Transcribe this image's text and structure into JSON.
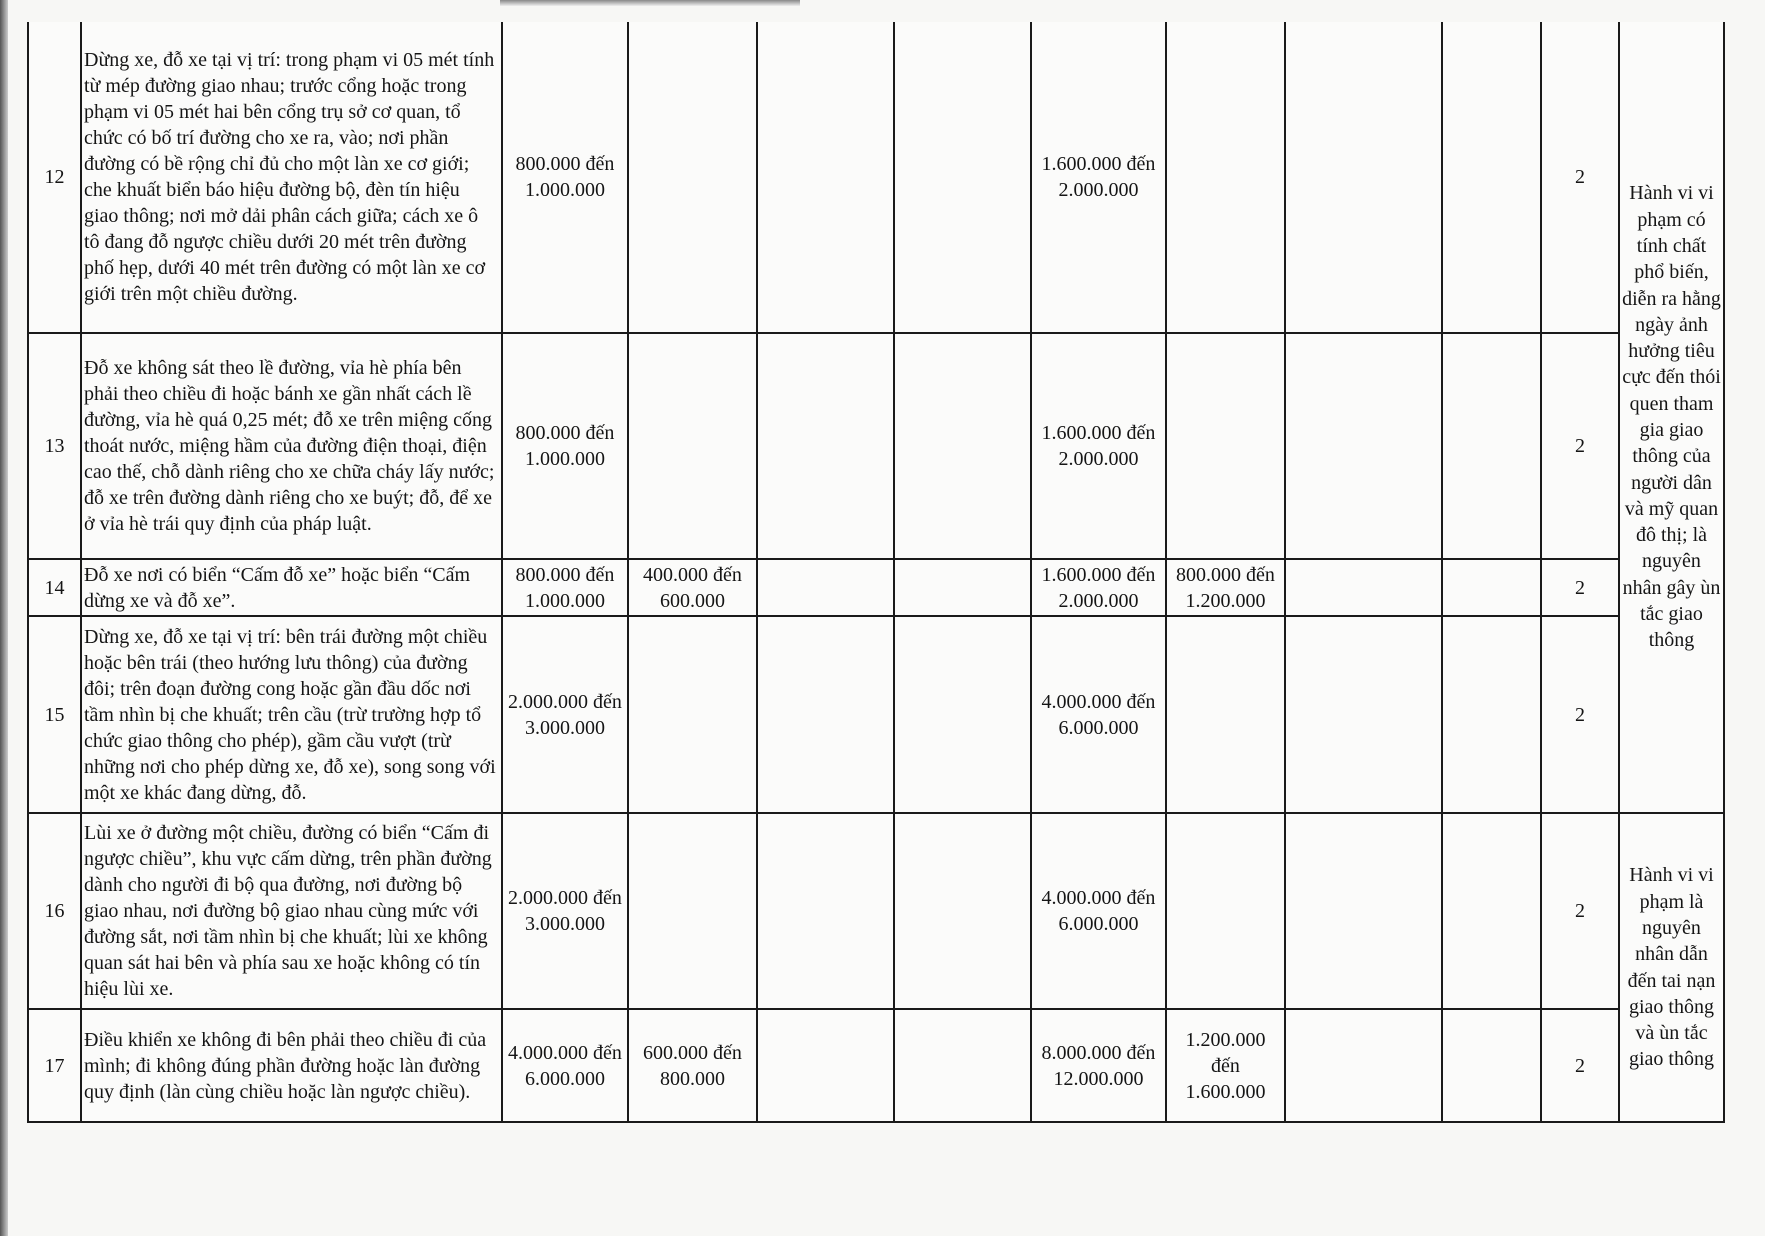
{
  "rows": [
    {
      "no": "12",
      "description": "Dừng xe, đỗ xe tại vị trí: trong phạm vi 05 mét tính từ mép đường giao nhau; trước cổng hoặc trong phạm vi 05 mét hai bên cổng trụ sở cơ quan, tổ chức có bố trí đường cho xe ra, vào; nơi phần đường có bề rộng chỉ đủ cho một làn xe cơ giới; che khuất biển báo hiệu đường bộ, đèn tín hiệu giao thông; nơi mở dải phân cách giữa; cách xe ô tô đang đỗ ngược chiều dưới 20 mét trên đường phố hẹp, dưới 40 mét trên đường có một làn xe cơ giới trên một chiều đường.",
      "c3": "800.000 đến 1.000.000",
      "c4": "",
      "c7": "1.600.000 đến 2.000.000",
      "c8": "",
      "c11": "2"
    },
    {
      "no": "13",
      "description": "Đỗ xe không sát theo lề đường, vỉa hè phía bên phải theo chiều đi hoặc bánh xe gần nhất cách lề đường, vỉa hè quá 0,25 mét; đỗ xe trên miệng cống thoát nước, miệng hầm của đường điện thoại, điện cao thế, chỗ dành riêng cho xe chữa cháy lấy nước; đỗ xe trên đường dành riêng cho xe buýt; đỗ, để xe ở vỉa hè trái quy định của pháp luật.",
      "c3": "800.000 đến 1.000.000",
      "c4": "",
      "c7": "1.600.000 đến 2.000.000",
      "c8": "",
      "c11": "2"
    },
    {
      "no": "14",
      "description": "Đỗ xe nơi có biển “Cấm đỗ xe” hoặc biển “Cấm dừng xe và đỗ xe”.",
      "c3": "800.000 đến 1.000.000",
      "c4": "400.000 đến 600.000",
      "c7": "1.600.000 đến 2.000.000",
      "c8": "800.000 đến 1.200.000",
      "c11": "2"
    },
    {
      "no": "15",
      "description": "Dừng xe, đỗ xe tại vị trí: bên trái đường một chiều hoặc bên trái (theo hướng lưu thông) của đường đôi; trên đoạn đường cong hoặc gần đầu dốc nơi tầm nhìn bị che khuất; trên cầu (trừ trường hợp tổ chức giao thông cho phép), gầm cầu vượt (trừ những nơi cho phép dừng xe, đỗ xe), song song với một xe khác đang dừng, đỗ.",
      "c3": "2.000.000 đến 3.000.000",
      "c4": "",
      "c7": "4.000.000 đến 6.000.000",
      "c8": "",
      "c11": "2"
    },
    {
      "no": "16",
      "description": "Lùi xe ở đường một chiều, đường có biển “Cấm đi ngược chiều”, khu vực cấm dừng, trên phần đường dành cho người đi bộ qua đường, nơi đường bộ giao nhau, nơi đường bộ giao nhau cùng mức với đường sắt, nơi tầm nhìn bị che khuất; lùi xe không quan sát hai bên và phía sau xe hoặc không có tín hiệu lùi xe.",
      "c3": "2.000.000 đến 3.000.000",
      "c4": "",
      "c7": "4.000.000 đến 6.000.000",
      "c8": "",
      "c11": "2"
    },
    {
      "no": "17",
      "description": "Điều khiển xe không đi bên phải theo chiều đi của mình; đi không đúng phần đường hoặc làn đường quy định (làn cùng chiều hoặc làn ngược chiều).",
      "c3": "4.000.000 đến 6.000.000",
      "c4": "600.000 đến 800.000",
      "c7": "8.000.000 đến 12.000.000",
      "c8": "1.200.000 đến 1.600.000",
      "c11": "2"
    }
  ],
  "notes": [
    "Hành vi vi phạm có tính chất phổ biến, diễn ra hằng ngày ảnh hưởng tiêu cực đến thói quen tham gia giao thông của người dân và mỹ quan đô thị; là nguyên nhân gây ùn tắc giao thông",
    "Hành vi vi phạm là nguyên nhân dẫn đến tai nạn giao thông và ùn tắc giao thông"
  ]
}
